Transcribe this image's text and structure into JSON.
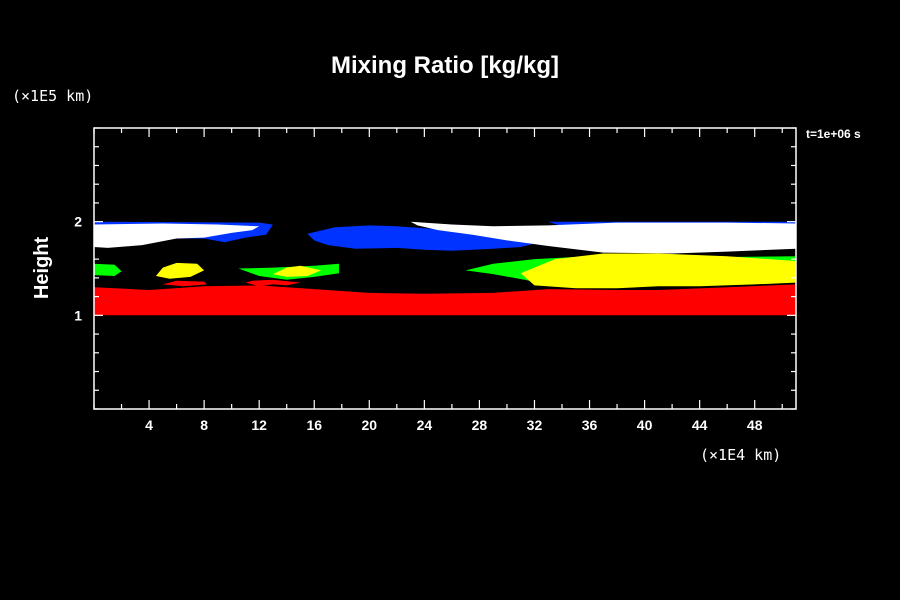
{
  "chart_data": {
    "type": "heatmap",
    "title": "Mixing Ratio [kg/kg]",
    "ylabel": "Height",
    "y_unit": "(×1E5 km)",
    "x_unit": "(×1E4 km)",
    "time_label": "t=1e+06 s",
    "xlim": [
      0,
      51
    ],
    "ylim": [
      0,
      3
    ],
    "x_ticks": [
      4,
      8,
      12,
      16,
      20,
      24,
      28,
      32,
      36,
      40,
      44,
      48
    ],
    "y_ticks": [
      1,
      2
    ],
    "grid": false,
    "colors": {
      "red": "#ff0000",
      "green": "#00ff00",
      "yellow": "#ffff00",
      "blue": "#0033ff",
      "white": "#ffffff",
      "cyan": "#00ffff",
      "magenta": "#ff00ff"
    },
    "regions": [
      {
        "color": "red",
        "points": [
          [
            0,
            1.0
          ],
          [
            51,
            1.0
          ],
          [
            51,
            1.33
          ],
          [
            46,
            1.3
          ],
          [
            41,
            1.27
          ],
          [
            38,
            1.27
          ],
          [
            33,
            1.28
          ],
          [
            29,
            1.24
          ],
          [
            24,
            1.23
          ],
          [
            20,
            1.24
          ],
          [
            16,
            1.28
          ],
          [
            12,
            1.32
          ],
          [
            8,
            1.31
          ],
          [
            4,
            1.27
          ],
          [
            0,
            1.3
          ]
        ]
      },
      {
        "color": "red",
        "points": [
          [
            11,
            1.35
          ],
          [
            12,
            1.31
          ],
          [
            13,
            1.33
          ],
          [
            14,
            1.32
          ],
          [
            15,
            1.35
          ],
          [
            13,
            1.38
          ],
          [
            11.5,
            1.37
          ]
        ]
      },
      {
        "color": "red",
        "points": [
          [
            5,
            1.33
          ],
          [
            6.5,
            1.31
          ],
          [
            8.2,
            1.33
          ],
          [
            8,
            1.36
          ],
          [
            6,
            1.37
          ]
        ]
      },
      {
        "color": "green",
        "points": [
          [
            0,
            1.43
          ],
          [
            1.5,
            1.42
          ],
          [
            2,
            1.47
          ],
          [
            1.5,
            1.54
          ],
          [
            0,
            1.55
          ]
        ]
      },
      {
        "color": "green",
        "points": [
          [
            10.5,
            1.5
          ],
          [
            13,
            1.51
          ],
          [
            16,
            1.53
          ],
          [
            17.8,
            1.55
          ],
          [
            17.8,
            1.45
          ],
          [
            16,
            1.41
          ],
          [
            14,
            1.38
          ],
          [
            12,
            1.42
          ]
        ]
      },
      {
        "color": "green",
        "points": [
          [
            27,
            1.48
          ],
          [
            29,
            1.55
          ],
          [
            32,
            1.6
          ],
          [
            36,
            1.63
          ],
          [
            40,
            1.64
          ],
          [
            44,
            1.62
          ],
          [
            51,
            1.63
          ],
          [
            51,
            1.48
          ],
          [
            46,
            1.4
          ],
          [
            40,
            1.34
          ],
          [
            36,
            1.32
          ],
          [
            32,
            1.36
          ],
          [
            29,
            1.44
          ]
        ]
      },
      {
        "color": "yellow",
        "points": [
          [
            4.5,
            1.42
          ],
          [
            5,
            1.51
          ],
          [
            6,
            1.56
          ],
          [
            7.5,
            1.55
          ],
          [
            8,
            1.48
          ],
          [
            7,
            1.41
          ],
          [
            5.5,
            1.39
          ]
        ]
      },
      {
        "color": "yellow",
        "points": [
          [
            13,
            1.44
          ],
          [
            14,
            1.51
          ],
          [
            15,
            1.53
          ],
          [
            16.5,
            1.48
          ],
          [
            15.5,
            1.42
          ],
          [
            14,
            1.41
          ]
        ]
      },
      {
        "color": "yellow",
        "points": [
          [
            31,
            1.45
          ],
          [
            33.5,
            1.6
          ],
          [
            37,
            1.66
          ],
          [
            41,
            1.66
          ],
          [
            46,
            1.63
          ],
          [
            51,
            1.58
          ],
          [
            51,
            1.35
          ],
          [
            48,
            1.33
          ],
          [
            44,
            1.31
          ],
          [
            41,
            1.31
          ],
          [
            38,
            1.29
          ],
          [
            35,
            1.29
          ],
          [
            32,
            1.32
          ]
        ]
      },
      {
        "color": "blue",
        "points": [
          [
            0,
            2.0
          ],
          [
            12,
            1.99
          ],
          [
            13,
            1.97
          ],
          [
            12.5,
            1.86
          ],
          [
            11,
            1.83
          ],
          [
            9.5,
            1.78
          ],
          [
            8,
            1.82
          ],
          [
            5,
            1.82
          ],
          [
            2,
            1.77
          ],
          [
            0,
            1.78
          ]
        ]
      },
      {
        "color": "blue",
        "points": [
          [
            15.5,
            1.87
          ],
          [
            17.5,
            1.94
          ],
          [
            20,
            1.96
          ],
          [
            22,
            1.95
          ],
          [
            24,
            1.93
          ],
          [
            27,
            1.9
          ],
          [
            30,
            1.87
          ],
          [
            32,
            1.82
          ],
          [
            33,
            1.8
          ],
          [
            31,
            1.73
          ],
          [
            29,
            1.71
          ],
          [
            26,
            1.69
          ],
          [
            24,
            1.7
          ],
          [
            22,
            1.72
          ],
          [
            19,
            1.71
          ],
          [
            17,
            1.75
          ],
          [
            16,
            1.8
          ]
        ]
      },
      {
        "color": "blue",
        "points": [
          [
            33,
            2.0
          ],
          [
            51,
            2.0
          ],
          [
            51,
            1.93
          ],
          [
            42,
            1.94
          ],
          [
            38,
            1.93
          ],
          [
            34,
            1.95
          ]
        ]
      },
      {
        "color": "white",
        "points": [
          [
            0,
            1.97
          ],
          [
            5,
            1.98
          ],
          [
            9,
            1.97
          ],
          [
            12,
            1.95
          ],
          [
            11.5,
            1.91
          ],
          [
            10,
            1.88
          ],
          [
            8,
            1.83
          ],
          [
            6,
            1.82
          ],
          [
            3.5,
            1.75
          ],
          [
            1,
            1.72
          ],
          [
            0,
            1.73
          ]
        ]
      },
      {
        "color": "white",
        "points": [
          [
            23,
            2.0
          ],
          [
            26,
            1.97
          ],
          [
            29,
            1.95
          ],
          [
            33,
            1.96
          ],
          [
            38,
            1.99
          ],
          [
            46,
            1.99
          ],
          [
            51,
            1.98
          ],
          [
            51,
            1.71
          ],
          [
            46,
            1.68
          ],
          [
            42,
            1.66
          ],
          [
            37,
            1.67
          ],
          [
            33,
            1.74
          ],
          [
            30,
            1.8
          ],
          [
            27.5,
            1.86
          ],
          [
            25,
            1.91
          ],
          [
            23.5,
            1.96
          ]
        ]
      }
    ]
  }
}
